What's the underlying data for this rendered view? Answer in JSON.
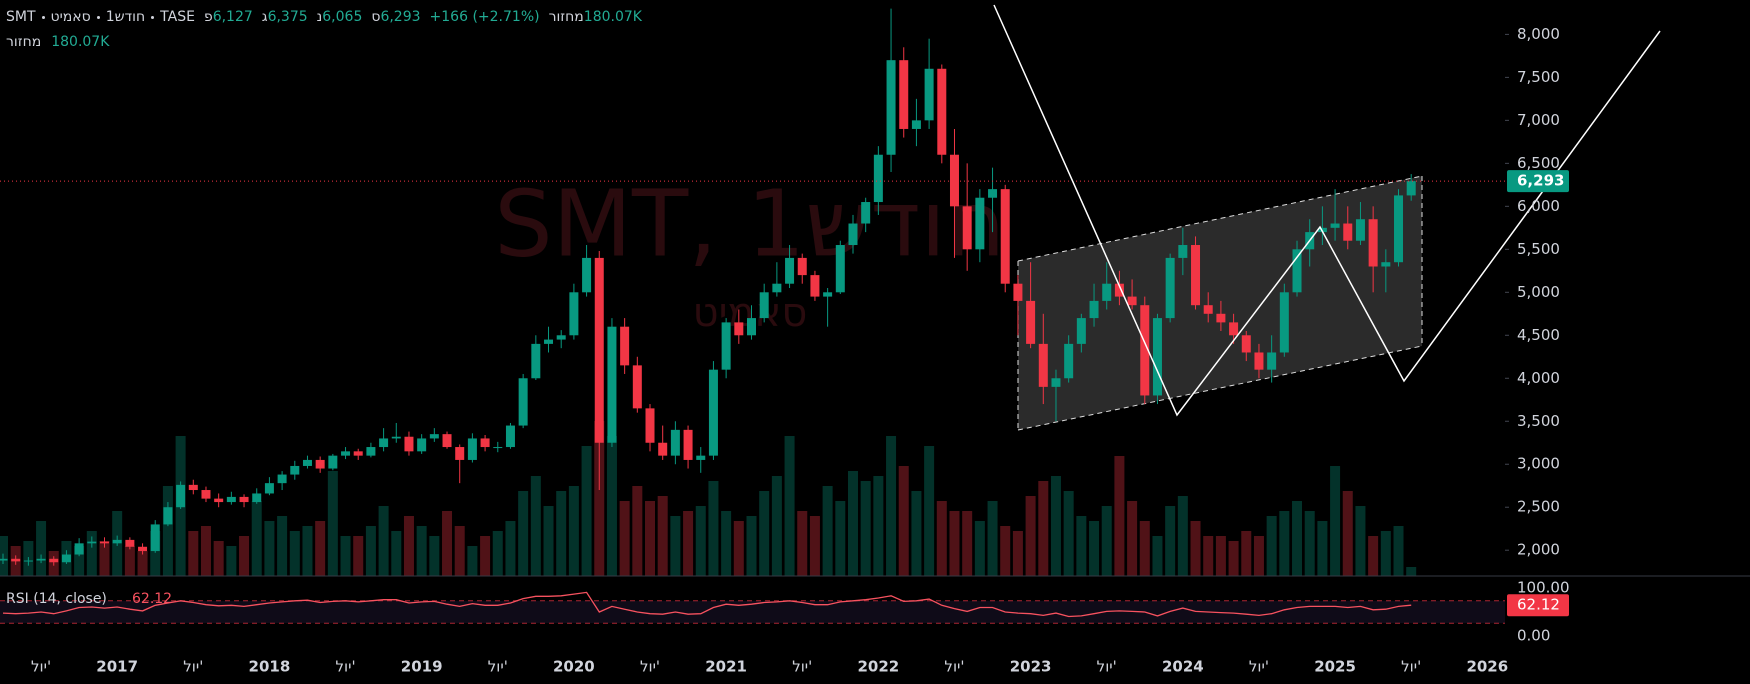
{
  "header": {
    "parts": [
      "SMT",
      "סאמיט",
      "1חודש",
      "TASE"
    ],
    "ohlc": [
      {
        "label": "פ",
        "value": "6,127"
      },
      {
        "label": "ג",
        "value": "6,375"
      },
      {
        "label": "נ",
        "value": "6,065"
      },
      {
        "label": "ס",
        "value": "6,293"
      }
    ],
    "change": "+166 (+2.71%)",
    "volume_label": "מחזור",
    "volume": "180.07K"
  },
  "watermark": {
    "title": "SMT, 1חודש",
    "subtitle": "סאמיט"
  },
  "chart_data": {
    "type": "candlestick",
    "up_color": "#089981",
    "down_color": "#f23645",
    "xlim": [
      "2016-04",
      "2026-02"
    ],
    "x": [
      "2016-04",
      "2016-05",
      "2016-06",
      "2016-07",
      "2016-08",
      "2016-09",
      "2016-10",
      "2016-11",
      "2016-12",
      "2017-01",
      "2017-02",
      "2017-03",
      "2017-04",
      "2017-05",
      "2017-06",
      "2017-07",
      "2017-08",
      "2017-09",
      "2017-10",
      "2017-11",
      "2017-12",
      "2018-01",
      "2018-02",
      "2018-03",
      "2018-04",
      "2018-05",
      "2018-06",
      "2018-07",
      "2018-08",
      "2018-09",
      "2018-10",
      "2018-11",
      "2018-12",
      "2019-01",
      "2019-02",
      "2019-03",
      "2019-04",
      "2019-05",
      "2019-06",
      "2019-07",
      "2019-08",
      "2019-09",
      "2019-10",
      "2019-11",
      "2019-12",
      "2020-01",
      "2020-02",
      "2020-03",
      "2020-04",
      "2020-05",
      "2020-06",
      "2020-07",
      "2020-08",
      "2020-09",
      "2020-10",
      "2020-11",
      "2020-12",
      "2021-01",
      "2021-02",
      "2021-03",
      "2021-04",
      "2021-05",
      "2021-06",
      "2021-07",
      "2021-08",
      "2021-09",
      "2021-10",
      "2021-11",
      "2021-12",
      "2022-01",
      "2022-02",
      "2022-03",
      "2022-04",
      "2022-05",
      "2022-06",
      "2022-07",
      "2022-08",
      "2022-09",
      "2022-10",
      "2022-11",
      "2022-12",
      "2023-01",
      "2023-02",
      "2023-03",
      "2023-04",
      "2023-05",
      "2023-06",
      "2023-07",
      "2023-08",
      "2023-09",
      "2023-10",
      "2023-11",
      "2023-12",
      "2024-01",
      "2024-02",
      "2024-03",
      "2024-04",
      "2024-05",
      "2024-06",
      "2024-07",
      "2024-08",
      "2024-09",
      "2024-10",
      "2024-11",
      "2024-12",
      "2025-01",
      "2025-02",
      "2025-03",
      "2025-04",
      "2025-05",
      "2025-06",
      "2025-07"
    ],
    "ohlc": [
      [
        1880,
        1960,
        1840,
        1900
      ],
      [
        1900,
        1940,
        1830,
        1870
      ],
      [
        1870,
        1920,
        1820,
        1880
      ],
      [
        1880,
        1950,
        1850,
        1900
      ],
      [
        1900,
        1930,
        1820,
        1860
      ],
      [
        1860,
        2000,
        1840,
        1950
      ],
      [
        1950,
        2140,
        1930,
        2080
      ],
      [
        2080,
        2160,
        2030,
        2100
      ],
      [
        2100,
        2150,
        2030,
        2080
      ],
      [
        2080,
        2170,
        2050,
        2120
      ],
      [
        2120,
        2150,
        2010,
        2040
      ],
      [
        2040,
        2080,
        1950,
        1990
      ],
      [
        1990,
        2350,
        1970,
        2300
      ],
      [
        2300,
        2560,
        2280,
        2500
      ],
      [
        2500,
        2800,
        2480,
        2760
      ],
      [
        2760,
        2820,
        2650,
        2700
      ],
      [
        2700,
        2740,
        2560,
        2600
      ],
      [
        2600,
        2660,
        2500,
        2560
      ],
      [
        2560,
        2680,
        2530,
        2620
      ],
      [
        2620,
        2650,
        2500,
        2560
      ],
      [
        2560,
        2720,
        2540,
        2660
      ],
      [
        2660,
        2850,
        2640,
        2780
      ],
      [
        2780,
        2920,
        2700,
        2880
      ],
      [
        2880,
        3040,
        2820,
        2980
      ],
      [
        2980,
        3100,
        2950,
        3050
      ],
      [
        3050,
        3090,
        2900,
        2950
      ],
      [
        2950,
        3120,
        2930,
        3100
      ],
      [
        3100,
        3200,
        3060,
        3150
      ],
      [
        3150,
        3180,
        3050,
        3100
      ],
      [
        3100,
        3250,
        3080,
        3200
      ],
      [
        3200,
        3420,
        3150,
        3300
      ],
      [
        3300,
        3480,
        3250,
        3320
      ],
      [
        3320,
        3380,
        3100,
        3150
      ],
      [
        3150,
        3350,
        3120,
        3300
      ],
      [
        3300,
        3420,
        3260,
        3350
      ],
      [
        3350,
        3380,
        3180,
        3200
      ],
      [
        3200,
        3230,
        2780,
        3050
      ],
      [
        3050,
        3360,
        3020,
        3300
      ],
      [
        3300,
        3340,
        3150,
        3200
      ],
      [
        3200,
        3260,
        3140,
        3200
      ],
      [
        3200,
        3480,
        3180,
        3450
      ],
      [
        3450,
        4050,
        3420,
        4000
      ],
      [
        4000,
        4500,
        3980,
        4400
      ],
      [
        4400,
        4600,
        4300,
        4450
      ],
      [
        4450,
        4560,
        4350,
        4500
      ],
      [
        4500,
        5100,
        4450,
        5000
      ],
      [
        5000,
        5550,
        4950,
        5400
      ],
      [
        5400,
        5480,
        2700,
        3250
      ],
      [
        3250,
        4700,
        3200,
        4600
      ],
      [
        4600,
        4700,
        4050,
        4150
      ],
      [
        4150,
        4250,
        3600,
        3650
      ],
      [
        3650,
        3700,
        3150,
        3250
      ],
      [
        3250,
        3450,
        3050,
        3100
      ],
      [
        3100,
        3500,
        3000,
        3400
      ],
      [
        3400,
        3450,
        2950,
        3050
      ],
      [
        3050,
        3200,
        2900,
        3100
      ],
      [
        3100,
        4200,
        3050,
        4100
      ],
      [
        4100,
        4700,
        4000,
        4650
      ],
      [
        4650,
        4800,
        4400,
        4500
      ],
      [
        4500,
        4850,
        4450,
        4700
      ],
      [
        4700,
        5100,
        4650,
        5000
      ],
      [
        5000,
        5350,
        4950,
        5100
      ],
      [
        5100,
        5550,
        5050,
        5400
      ],
      [
        5400,
        5450,
        5100,
        5200
      ],
      [
        5200,
        5250,
        4900,
        4950
      ],
      [
        4950,
        5050,
        4600,
        5000
      ],
      [
        5000,
        5600,
        4980,
        5550
      ],
      [
        5550,
        5900,
        5450,
        5800
      ],
      [
        5800,
        6100,
        5700,
        6050
      ],
      [
        6050,
        6700,
        5900,
        6600
      ],
      [
        6600,
        8300,
        6400,
        7700
      ],
      [
        7700,
        7850,
        6800,
        6900
      ],
      [
        6900,
        7250,
        6700,
        7000
      ],
      [
        7000,
        7950,
        6900,
        7600
      ],
      [
        7600,
        7650,
        6500,
        6600
      ],
      [
        6600,
        6900,
        5400,
        6000
      ],
      [
        6000,
        6500,
        5250,
        5500
      ],
      [
        5500,
        6200,
        5350,
        6100
      ],
      [
        6100,
        6450,
        5700,
        6200
      ],
      [
        6200,
        6250,
        5000,
        5100
      ],
      [
        5100,
        5200,
        4500,
        4900
      ],
      [
        4900,
        5350,
        4350,
        4400
      ],
      [
        4400,
        4750,
        3700,
        3900
      ],
      [
        3900,
        4100,
        3500,
        4000
      ],
      [
        4000,
        4500,
        3950,
        4400
      ],
      [
        4400,
        4750,
        4300,
        4700
      ],
      [
        4700,
        5100,
        4600,
        4900
      ],
      [
        4900,
        5350,
        4800,
        5100
      ],
      [
        5100,
        5250,
        4850,
        4950
      ],
      [
        4950,
        5150,
        4800,
        4850
      ],
      [
        4850,
        4950,
        3700,
        3800
      ],
      [
        3800,
        4750,
        3700,
        4700
      ],
      [
        4700,
        5450,
        4650,
        5400
      ],
      [
        5400,
        5750,
        5200,
        5550
      ],
      [
        5550,
        5650,
        4800,
        4850
      ],
      [
        4850,
        5000,
        4650,
        4750
      ],
      [
        4750,
        4900,
        4550,
        4650
      ],
      [
        4650,
        4750,
        4400,
        4500
      ],
      [
        4500,
        4550,
        4200,
        4300
      ],
      [
        4300,
        4400,
        4000,
        4100
      ],
      [
        4100,
        4500,
        3950,
        4300
      ],
      [
        4300,
        5100,
        4250,
        5000
      ],
      [
        5000,
        5600,
        4950,
        5500
      ],
      [
        5500,
        5850,
        5300,
        5700
      ],
      [
        5700,
        6000,
        5550,
        5750
      ],
      [
        5750,
        6200,
        5600,
        5800
      ],
      [
        5800,
        6000,
        5500,
        5600
      ],
      [
        5600,
        6050,
        5550,
        5850
      ],
      [
        5850,
        6000,
        5000,
        5300
      ],
      [
        5300,
        5500,
        5000,
        5350
      ],
      [
        5350,
        6200,
        5300,
        6127
      ],
      [
        6127,
        6375,
        6065,
        6293
      ]
    ],
    "last_price_label": "6,293",
    "ylim": [
      1700,
      8400
    ],
    "yticks": [
      {
        "value": 2000,
        "label": "2,000"
      },
      {
        "value": 2500,
        "label": "2,500"
      },
      {
        "value": 3000,
        "label": "3,000"
      },
      {
        "value": 3500,
        "label": "3,500"
      },
      {
        "value": 4000,
        "label": "4,000"
      },
      {
        "value": 4500,
        "label": "4,500"
      },
      {
        "value": 5000,
        "label": "5,000"
      },
      {
        "value": 5500,
        "label": "5,500"
      },
      {
        "value": 6000,
        "label": "6,000"
      },
      {
        "value": 6500,
        "label": "6,500"
      },
      {
        "value": 7000,
        "label": "7,000"
      },
      {
        "value": 7500,
        "label": "7,500"
      },
      {
        "value": 8000,
        "label": "8,000"
      }
    ],
    "xticks": [
      {
        "value": "2016-07",
        "label": "יול'"
      },
      {
        "value": "2017-01",
        "label": "2017"
      },
      {
        "value": "2017-07",
        "label": "יול'"
      },
      {
        "value": "2018-01",
        "label": "2018"
      },
      {
        "value": "2018-07",
        "label": "יול'"
      },
      {
        "value": "2019-01",
        "label": "2019"
      },
      {
        "value": "2019-07",
        "label": "יול'"
      },
      {
        "value": "2020-01",
        "label": "2020"
      },
      {
        "value": "2020-07",
        "label": "יול'"
      },
      {
        "value": "2021-01",
        "label": "2021"
      },
      {
        "value": "2021-07",
        "label": "יול'"
      },
      {
        "value": "2022-01",
        "label": "2022"
      },
      {
        "value": "2022-07",
        "label": "יול'"
      },
      {
        "value": "2023-01",
        "label": "2023"
      },
      {
        "value": "2023-07",
        "label": "יול'"
      },
      {
        "value": "2024-01",
        "label": "2024"
      },
      {
        "value": "2024-07",
        "label": "יול'"
      },
      {
        "value": "2025-01",
        "label": "2025"
      },
      {
        "value": "2025-07",
        "label": "יול'"
      },
      {
        "value": "2026-01",
        "label": "2026"
      }
    ],
    "grid": false,
    "volume": {
      "ylim": [
        0,
        4000
      ],
      "values": [
        800,
        600,
        700,
        1100,
        500,
        700,
        600,
        900,
        700,
        1300,
        600,
        500,
        900,
        1800,
        2800,
        900,
        1000,
        700,
        600,
        800,
        1500,
        1100,
        1200,
        900,
        1000,
        1100,
        2100,
        800,
        800,
        1000,
        1400,
        900,
        1200,
        1000,
        800,
        1300,
        1000,
        600,
        800,
        900,
        1100,
        1700,
        2000,
        1400,
        1700,
        1800,
        2600,
        3100,
        2800,
        1500,
        1800,
        1500,
        1600,
        1200,
        1300,
        1400,
        1900,
        1300,
        1100,
        1200,
        1700,
        2000,
        2800,
        1300,
        1200,
        1800,
        1500,
        2100,
        1900,
        2000,
        2800,
        2200,
        1700,
        2600,
        1500,
        1300,
        1300,
        1100,
        1500,
        1000,
        900,
        1600,
        1900,
        2000,
        1700,
        1200,
        1100,
        1400,
        2400,
        1500,
        1100,
        800,
        1400,
        1600,
        1100,
        800,
        800,
        700,
        900,
        800,
        1200,
        1300,
        1500,
        1300,
        1100,
        2200,
        1700,
        1400,
        800,
        900,
        1000,
        180.07
      ]
    },
    "rsi": {
      "name": "RSI (14, close)",
      "color": "#f7525f",
      "ylim": [
        0,
        100
      ],
      "bands": [
        30,
        70
      ],
      "yticks": [
        {
          "value": 100,
          "label": "100.00"
        },
        {
          "value": 0,
          "label": "0.00"
        }
      ],
      "values": [
        48,
        47,
        48,
        50,
        47,
        52,
        58,
        59,
        57,
        59,
        55,
        52,
        62,
        66,
        70,
        67,
        63,
        61,
        62,
        60,
        63,
        66,
        68,
        70,
        71,
        67,
        69,
        70,
        68,
        70,
        72,
        72,
        66,
        68,
        69,
        64,
        60,
        65,
        62,
        62,
        66,
        74,
        78,
        78,
        79,
        82,
        85,
        50,
        60,
        55,
        50,
        47,
        46,
        50,
        46,
        47,
        58,
        64,
        62,
        64,
        67,
        68,
        70,
        67,
        63,
        63,
        68,
        70,
        72,
        75,
        79,
        69,
        70,
        73,
        62,
        56,
        51,
        58,
        58,
        50,
        48,
        47,
        44,
        48,
        42,
        43,
        47,
        51,
        52,
        51,
        50,
        43,
        51,
        57,
        51,
        50,
        49,
        48,
        46,
        44,
        47,
        54,
        58,
        60,
        60,
        60,
        58,
        60,
        54,
        55,
        60,
        62.12
      ]
    }
  }
}
